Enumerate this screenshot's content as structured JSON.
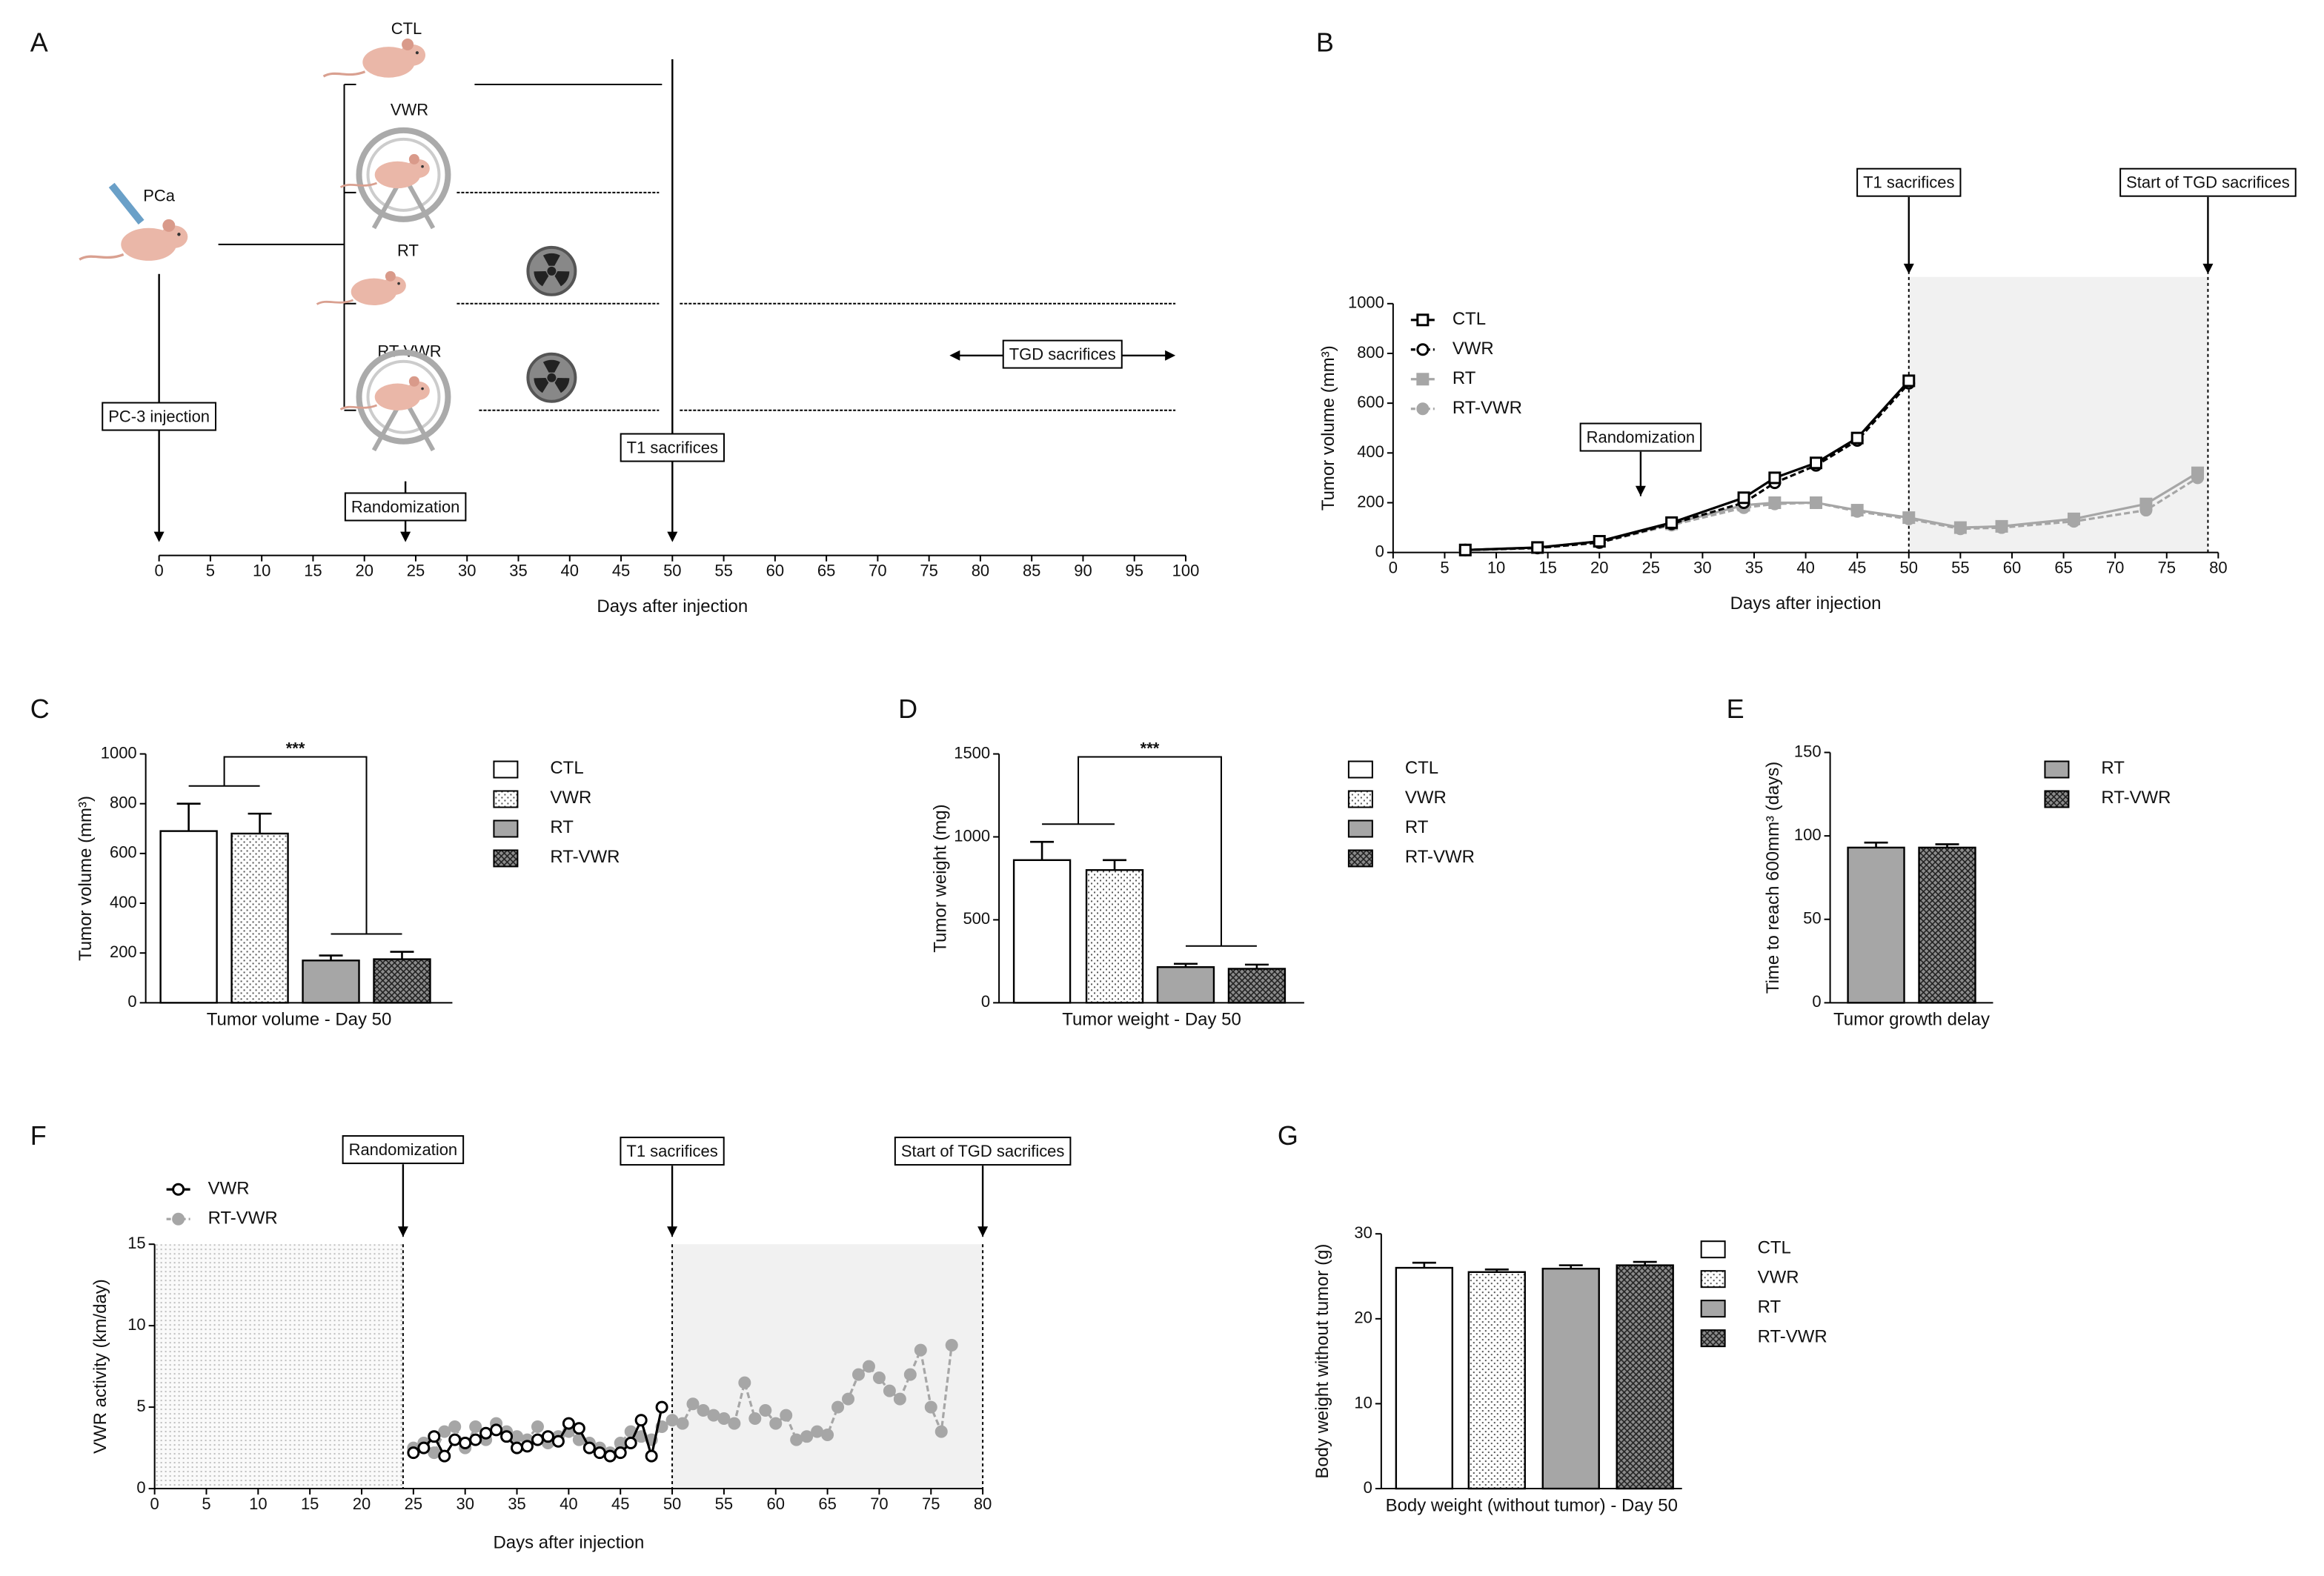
{
  "chart_data": [
    {
      "type": "timeline",
      "panel": "A",
      "xlabel": "Days after injection",
      "xlim": [
        0,
        100
      ],
      "xticks": [
        0,
        5,
        10,
        15,
        20,
        25,
        30,
        35,
        40,
        45,
        50,
        55,
        60,
        65,
        70,
        75,
        80,
        85,
        90,
        95,
        100
      ],
      "origin": "PCa",
      "groups": [
        "CTL",
        "VWR",
        "RT",
        "RT-VWR"
      ],
      "events": [
        {
          "label": "PC-3 injection",
          "x": 0
        },
        {
          "label": "Randomization",
          "x": 24
        },
        {
          "label": "T1 sacrifices",
          "x": 50
        }
      ],
      "range_annotation": {
        "label": "TGD sacrifices",
        "x": [
          77,
          99
        ]
      }
    },
    {
      "type": "line",
      "panel": "B",
      "xlabel": "Days after injection",
      "ylabel": "Tumor volume (mm³)",
      "xlim": [
        0,
        80
      ],
      "xticks": [
        0,
        5,
        10,
        15,
        20,
        25,
        30,
        35,
        40,
        45,
        50,
        55,
        60,
        65,
        70,
        75,
        80
      ],
      "ylim": [
        0,
        1000
      ],
      "yticks": [
        0,
        200,
        400,
        600,
        800,
        1000
      ],
      "series": [
        {
          "name": "CTL",
          "color": "#000000",
          "dash": false,
          "marker": "square",
          "filled": false,
          "x": [
            7,
            14,
            20,
            27,
            34,
            37,
            41,
            45,
            50
          ],
          "values": [
            10,
            20,
            45,
            120,
            220,
            300,
            360,
            460,
            690
          ]
        },
        {
          "name": "VWR",
          "color": "#000000",
          "dash": true,
          "marker": "circle",
          "filled": false,
          "x": [
            7,
            14,
            20,
            27,
            34,
            37,
            41,
            45,
            50
          ],
          "values": [
            10,
            18,
            40,
            115,
            200,
            280,
            350,
            450,
            680
          ]
        },
        {
          "name": "RT",
          "color": "#a6a6a6",
          "dash": false,
          "marker": "square",
          "filled": true,
          "x": [
            7,
            14,
            20,
            27,
            34,
            37,
            41,
            45,
            50,
            55,
            59,
            66,
            73,
            78
          ],
          "values": [
            10,
            20,
            45,
            115,
            190,
            200,
            200,
            170,
            140,
            100,
            105,
            135,
            195,
            320
          ]
        },
        {
          "name": "RT-VWR",
          "color": "#a6a6a6",
          "dash": true,
          "marker": "circle",
          "filled": true,
          "x": [
            7,
            14,
            20,
            27,
            34,
            37,
            41,
            45,
            50,
            55,
            59,
            66,
            73,
            78
          ],
          "values": [
            10,
            18,
            40,
            110,
            180,
            195,
            200,
            165,
            135,
            95,
            100,
            125,
            170,
            300
          ]
        }
      ],
      "annotations": [
        {
          "label": "Randomization",
          "x": 24
        },
        {
          "label": "T1 sacrifices",
          "x": 50
        },
        {
          "label": "Start of TGD sacrifices",
          "x": 79
        }
      ]
    },
    {
      "type": "bar",
      "panel": "C",
      "categories": [
        "Tumor volume - Day 50"
      ],
      "ylabel": "Tumor volume (mm³)",
      "ylim": [
        0,
        1000
      ],
      "yticks": [
        0,
        200,
        400,
        600,
        800,
        1000
      ],
      "significance": "***",
      "series": [
        {
          "name": "CTL",
          "color": "#ffffff",
          "pattern": null,
          "values": [
            690
          ],
          "errors": [
            110
          ]
        },
        {
          "name": "VWR",
          "color": "#ffffff",
          "pattern": "dots",
          "values": [
            680
          ],
          "errors": [
            80
          ]
        },
        {
          "name": "RT",
          "color": "#a6a6a6",
          "pattern": null,
          "values": [
            170
          ],
          "errors": [
            20
          ]
        },
        {
          "name": "RT-VWR",
          "color": "#8c8c8c",
          "pattern": "crosshatch",
          "values": [
            175
          ],
          "errors": [
            30
          ]
        }
      ]
    },
    {
      "type": "bar",
      "panel": "D",
      "categories": [
        "Tumor weight - Day 50"
      ],
      "ylabel": "Tumor weight (mg)",
      "ylim": [
        0,
        1500
      ],
      "yticks": [
        0,
        500,
        1000,
        1500
      ],
      "significance": "***",
      "series": [
        {
          "name": "CTL",
          "color": "#ffffff",
          "pattern": null,
          "values": [
            860
          ],
          "errors": [
            110
          ]
        },
        {
          "name": "VWR",
          "color": "#ffffff",
          "pattern": "dots",
          "values": [
            800
          ],
          "errors": [
            60
          ]
        },
        {
          "name": "RT",
          "color": "#a6a6a6",
          "pattern": null,
          "values": [
            215
          ],
          "errors": [
            20
          ]
        },
        {
          "name": "RT-VWR",
          "color": "#8c8c8c",
          "pattern": "crosshatch",
          "values": [
            205
          ],
          "errors": [
            25
          ]
        }
      ]
    },
    {
      "type": "bar",
      "panel": "E",
      "categories": [
        "Tumor growth delay"
      ],
      "ylabel": "Time to reach 600mm³ (days)",
      "ylim": [
        0,
        150
      ],
      "yticks": [
        0,
        50,
        100,
        150
      ],
      "series": [
        {
          "name": "RT",
          "color": "#a6a6a6",
          "pattern": null,
          "values": [
            93
          ],
          "errors": [
            3
          ]
        },
        {
          "name": "RT-VWR",
          "color": "#8c8c8c",
          "pattern": "crosshatch",
          "values": [
            93
          ],
          "errors": [
            2
          ]
        }
      ]
    },
    {
      "type": "line",
      "panel": "F",
      "xlabel": "Days after injection",
      "ylabel": "VWR activity (km/day)",
      "xlim": [
        0,
        80
      ],
      "xticks": [
        0,
        5,
        10,
        15,
        20,
        25,
        30,
        35,
        40,
        45,
        50,
        55,
        60,
        65,
        70,
        75,
        80
      ],
      "ylim": [
        0,
        15
      ],
      "yticks": [
        0,
        5,
        10,
        15
      ],
      "x": [
        25,
        26,
        27,
        28,
        29,
        30,
        31,
        32,
        33,
        34,
        35,
        36,
        37,
        38,
        39,
        40,
        41,
        42,
        43,
        44,
        45,
        46,
        47,
        48,
        49,
        50,
        51,
        52,
        53,
        54,
        55,
        56,
        57,
        58,
        59,
        60,
        61,
        62,
        63,
        64,
        65,
        66,
        67,
        68,
        69,
        70,
        71,
        72,
        73,
        74,
        75,
        76,
        77
      ],
      "series": [
        {
          "name": "VWR",
          "color": "#000000",
          "dash": false,
          "marker": "circle",
          "filled": false,
          "values": [
            2.2,
            2.5,
            3.2,
            2.0,
            3.0,
            2.8,
            3.0,
            3.4,
            3.6,
            3.2,
            2.5,
            2.6,
            3.0,
            3.2,
            2.9,
            4.0,
            3.7,
            2.5,
            2.2,
            2.0,
            2.2,
            2.8,
            4.2,
            2.0,
            5.0,
            null,
            null,
            null,
            null,
            null,
            null,
            null,
            null,
            null,
            null,
            null,
            null,
            null,
            null,
            null,
            null,
            null,
            null,
            null,
            null,
            null,
            null,
            null,
            null,
            null,
            null,
            null,
            null
          ]
        },
        {
          "name": "RT-VWR",
          "color": "#a6a6a6",
          "dash": true,
          "marker": "circle",
          "filled": true,
          "values": [
            2.5,
            2.8,
            2.2,
            3.5,
            3.8,
            2.5,
            3.8,
            3.0,
            4.0,
            3.5,
            3.2,
            3.0,
            3.8,
            2.8,
            3.2,
            3.5,
            3.0,
            2.8,
            2.5,
            2.2,
            2.8,
            3.5,
            3.2,
            3.0,
            3.8,
            4.2,
            4.0,
            5.2,
            4.8,
            4.5,
            4.3,
            4.0,
            6.5,
            4.3,
            4.8,
            4.0,
            4.5,
            3.0,
            3.2,
            3.5,
            3.3,
            5.0,
            5.5,
            7.0,
            7.5,
            6.8,
            6.0,
            5.5,
            7.0,
            8.5,
            5.0,
            3.5,
            8.8
          ]
        }
      ],
      "annotations": [
        {
          "label": "Randomization",
          "x": 24
        },
        {
          "label": "T1 sacrifices",
          "x": 50
        },
        {
          "label": "Start of TGD sacrifices",
          "x": 80
        }
      ]
    },
    {
      "type": "bar",
      "panel": "G",
      "categories": [
        "Body weight (without tumor) - Day 50"
      ],
      "ylabel": "Body weight without tumor (g)",
      "ylim": [
        0,
        30
      ],
      "yticks": [
        0,
        10,
        20,
        30
      ],
      "series": [
        {
          "name": "CTL",
          "color": "#ffffff",
          "pattern": null,
          "values": [
            26
          ],
          "errors": [
            0.6
          ]
        },
        {
          "name": "VWR",
          "color": "#ffffff",
          "pattern": "dots",
          "values": [
            25.5
          ],
          "errors": [
            0.3
          ]
        },
        {
          "name": "RT",
          "color": "#a6a6a6",
          "pattern": null,
          "values": [
            25.9
          ],
          "errors": [
            0.4
          ]
        },
        {
          "name": "RT-VWR",
          "color": "#8c8c8c",
          "pattern": "crosshatch",
          "values": [
            26.3
          ],
          "errors": [
            0.4
          ]
        }
      ]
    }
  ]
}
